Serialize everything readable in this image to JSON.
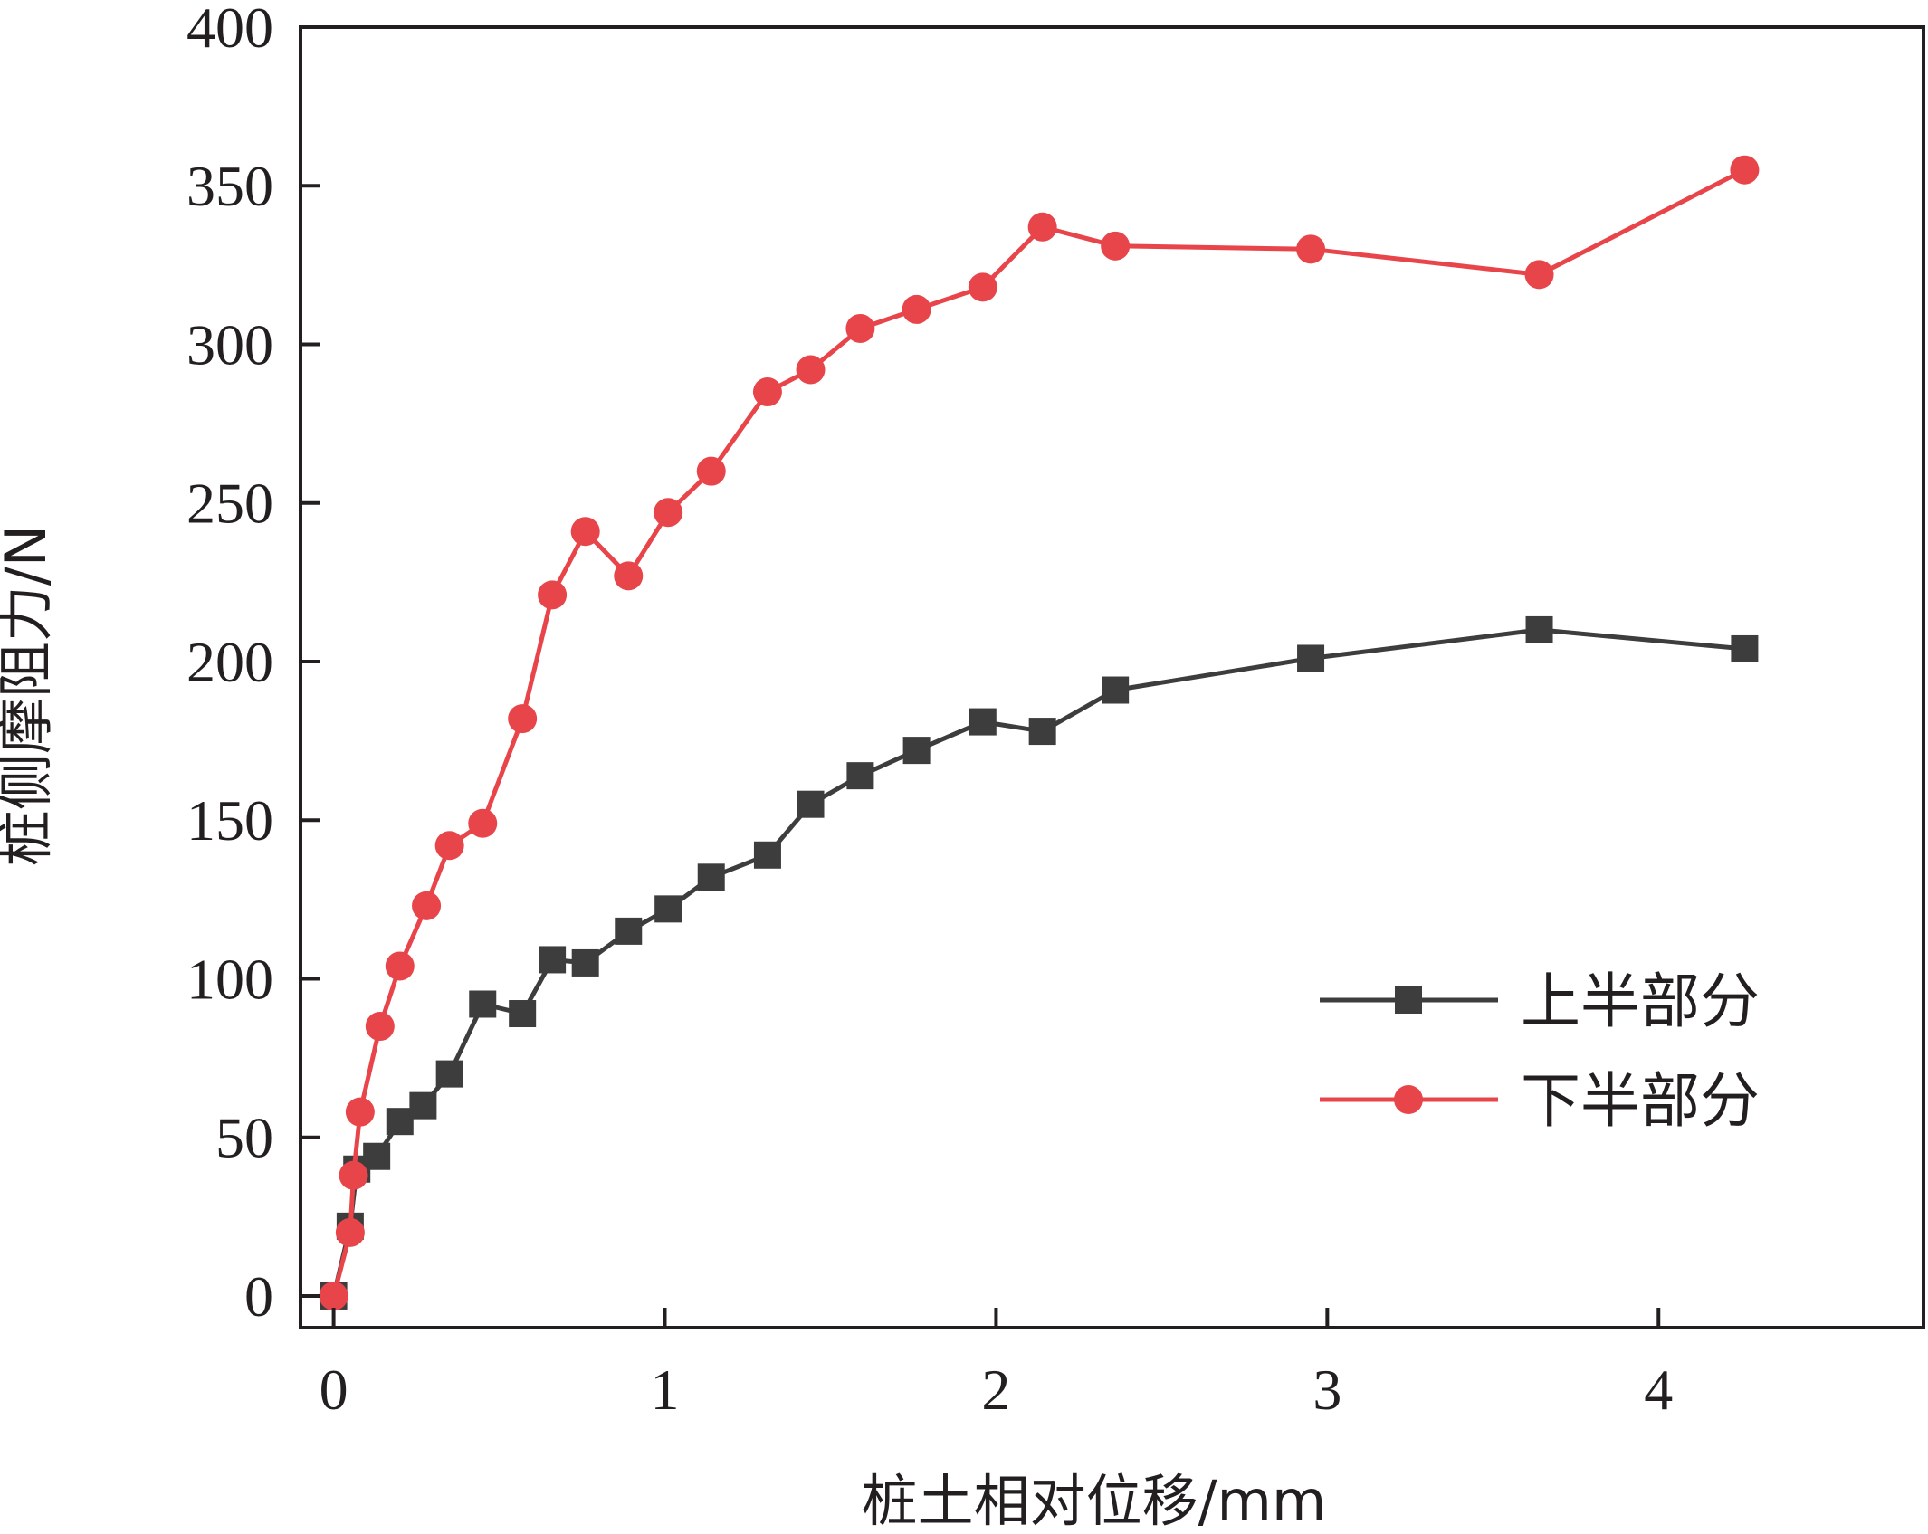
{
  "chart_data": {
    "type": "line",
    "title": "",
    "xlabel": "桩土相对位移/mm",
    "ylabel": "桩侧摩阻力/N",
    "xlim": [
      -0.1,
      4.8
    ],
    "ylim": [
      -10,
      400
    ],
    "xticks": [
      0,
      1,
      2,
      3,
      4
    ],
    "yticks": [
      0,
      50,
      100,
      150,
      200,
      250,
      300,
      350,
      400
    ],
    "grid": false,
    "legend_position": "right",
    "series": [
      {
        "name": "上半部分",
        "color": "#3d3d3d",
        "marker": "square",
        "x": [
          0.0,
          0.05,
          0.07,
          0.13,
          0.2,
          0.27,
          0.35,
          0.45,
          0.57,
          0.66,
          0.76,
          0.89,
          1.01,
          1.14,
          1.31,
          1.44,
          1.59,
          1.76,
          1.96,
          2.14,
          2.36,
          2.95,
          3.64,
          4.26
        ],
        "y": [
          0,
          22,
          40,
          44,
          55,
          60,
          70,
          92,
          89,
          106,
          105,
          115,
          122,
          132,
          139,
          155,
          164,
          172,
          181,
          178,
          191,
          201,
          210,
          204
        ]
      },
      {
        "name": "下半部分",
        "color": "#e8454a",
        "marker": "circle",
        "x": [
          0.0,
          0.05,
          0.06,
          0.08,
          0.14,
          0.2,
          0.28,
          0.35,
          0.45,
          0.57,
          0.66,
          0.76,
          0.89,
          1.01,
          1.14,
          1.31,
          1.44,
          1.59,
          1.76,
          1.96,
          2.14,
          2.36,
          2.95,
          3.64,
          4.26
        ],
        "y": [
          0,
          20,
          38,
          58,
          85,
          104,
          123,
          142,
          149,
          182,
          221,
          241,
          227,
          247,
          260,
          285,
          292,
          305,
          311,
          318,
          337,
          331,
          330,
          322,
          355
        ]
      }
    ]
  },
  "colors": {
    "axis": "#231f20",
    "series_upper": "#3d3d3d",
    "series_lower": "#e8454a"
  }
}
